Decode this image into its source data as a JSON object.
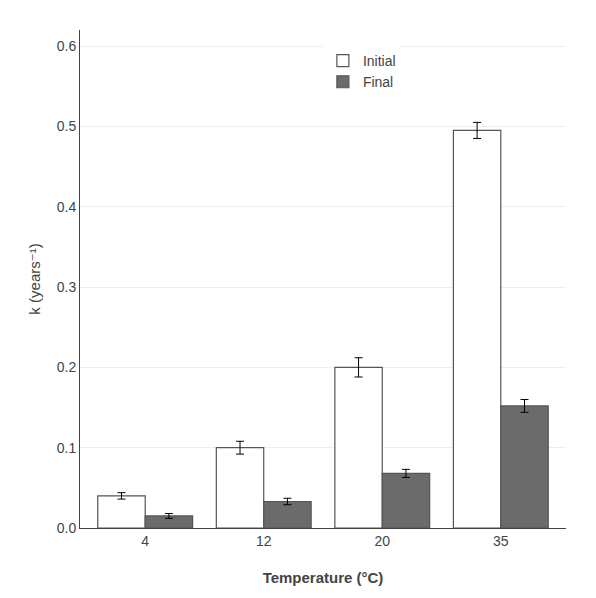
{
  "chart_data": {
    "type": "bar",
    "categories": [
      "4",
      "12",
      "20",
      "35"
    ],
    "series": [
      {
        "name": "Initial",
        "color": "#ffffff",
        "values": [
          0.04,
          0.1,
          0.2,
          0.495
        ],
        "errors": [
          0.004,
          0.008,
          0.012,
          0.01
        ]
      },
      {
        "name": "Final",
        "color": "#6b6b6b",
        "values": [
          0.015,
          0.033,
          0.068,
          0.152
        ],
        "errors": [
          0.003,
          0.004,
          0.005,
          0.008
        ]
      }
    ],
    "xlabel": "Temperature (°C)",
    "ylabel": "k (years⁻¹)",
    "ylim": [
      0,
      0.62
    ],
    "yticks": [
      {
        "value": 0.0,
        "label": "0.0"
      },
      0.1,
      0.2,
      0.3,
      0.4,
      0.5,
      0.6
    ],
    "grid": true,
    "legend": "upper center"
  }
}
